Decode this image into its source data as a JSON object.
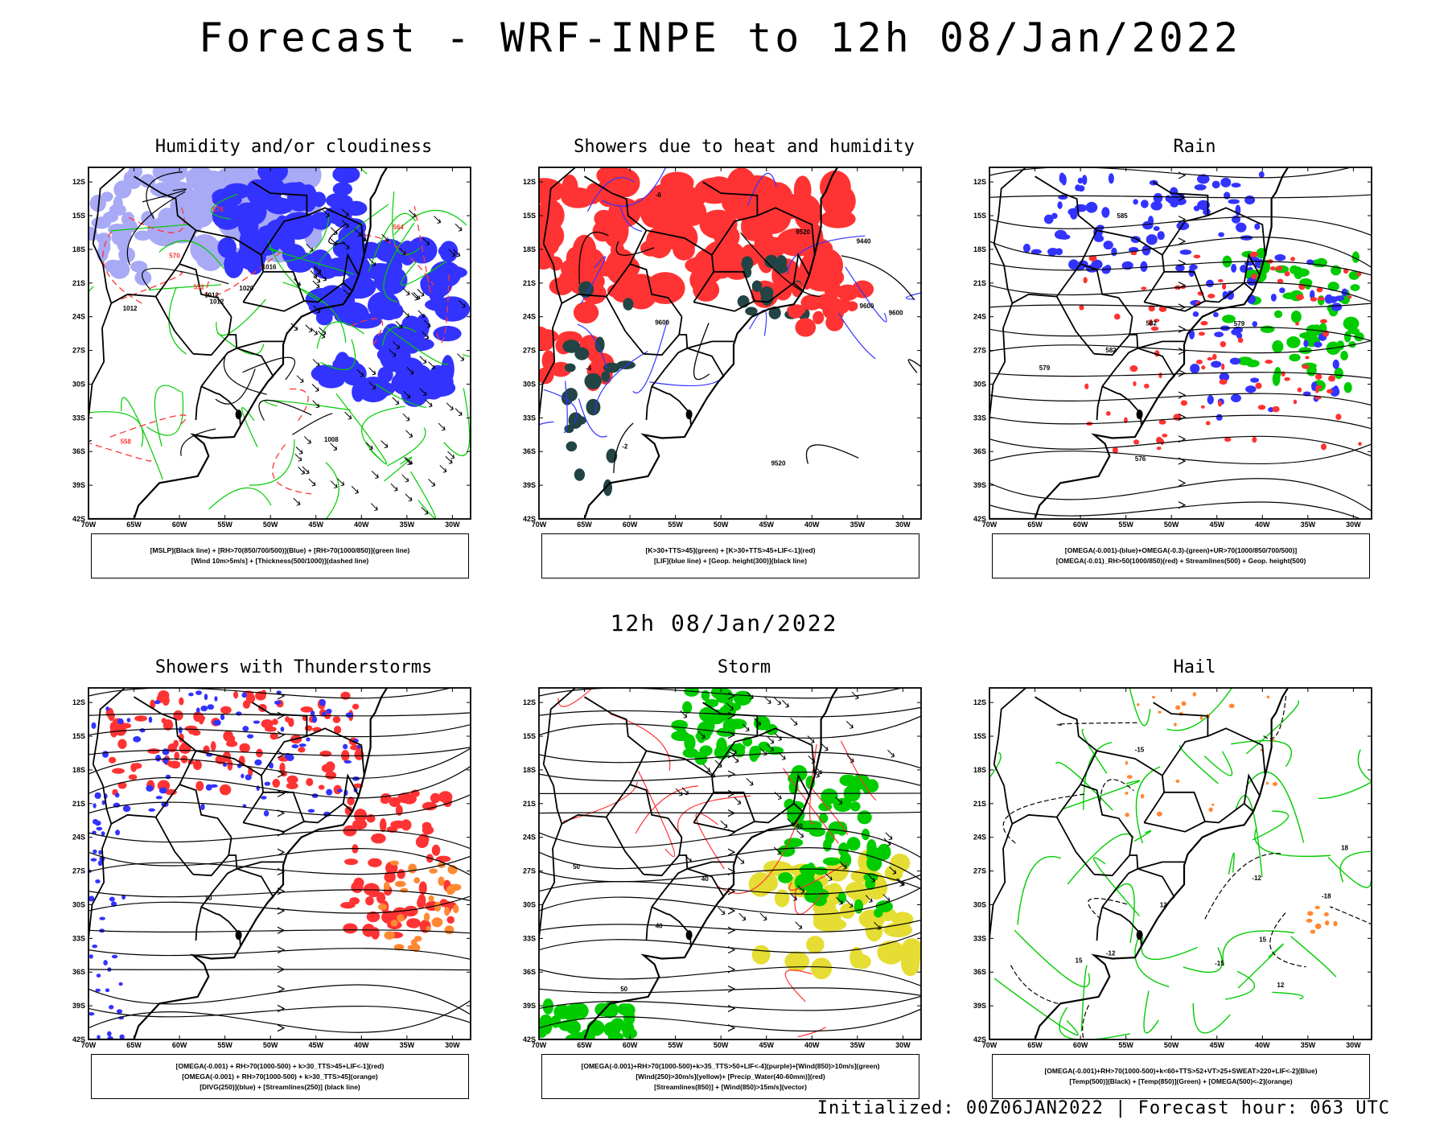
{
  "header": {
    "title": "Forecast - WRF-INPE to 12h 08/Jan/2022",
    "subtitle": "12h 08/Jan/2022",
    "footer": "Initialized: 00Z06JAN2022 | Forecast hour: 063 UTC"
  },
  "axes": {
    "lat_labels": [
      "12S",
      "15S",
      "18S",
      "21S",
      "24S",
      "27S",
      "30S",
      "33S",
      "36S",
      "39S",
      "42S"
    ],
    "lon_labels": [
      "70W",
      "65W",
      "60W",
      "55W",
      "50W",
      "45W",
      "40W",
      "35W",
      "30W"
    ]
  },
  "colors": {
    "blue": "#3333ff",
    "light_blue": "#a9aaf5",
    "green": "#00cc00",
    "red": "#ff3333",
    "orange": "#ff8833",
    "dark_teal": "#224444",
    "yellow": "#e5dd33",
    "purple": "#9933cc"
  },
  "panels": [
    {
      "title": "Humidity and/or cloudiness",
      "caption": [
        "[MSLP](Black line) + [RH>70(850/700/500)](Blue) + [RH>70(1000/850)](green line)",
        "[Wind 10m>5m/s] + [Thickness(500/1000)](dashed line)"
      ],
      "contour_labels": [
        "1012",
        "1012",
        "1012",
        "1016",
        "1020",
        "570",
        "576",
        "564",
        "558",
        "552",
        "1008"
      ]
    },
    {
      "title": "Showers due to heat and humidity",
      "caption": [
        "[K>30+TTS>45](green) + [K>30+TTS>45+LIF<-1](red)",
        "[LIF](blue line) + [Geop. height(300)](black line)"
      ],
      "contour_labels": [
        "9600",
        "9600",
        "9520",
        "9440",
        "9600",
        "9520",
        "-6",
        "-4",
        "-2"
      ]
    },
    {
      "title": "Rain",
      "caption": [
        "[OMEGA(-0.001)-(blue)+OMEGA(-0.3)-(green)+UR>70(1000/850/700/500)]",
        "[OMEGA(-0.01)_RH>50(1000/850)(red) + Streamlines(500) + Geop. height(500)"
      ],
      "contour_labels": [
        "582",
        "579",
        "576",
        "585",
        "582",
        "579"
      ]
    },
    {
      "title": "Showers with Thunderstorms",
      "caption": [
        "[OMEGA(-0.001) + RH>70(1000-500) + k>30_TTS>45+LIF<-1](red)",
        "[OMEGA(-0.001) + RH>70(1000-500) + k>30_TTS>45](orange)",
        "[DIVG(250)](blue) + [Streamlines(250)] (black line)"
      ],
      "contour_labels": [
        "10"
      ]
    },
    {
      "title": "Storm",
      "caption": [
        "[OMEGA(-0.001)+RH>70(1000-500)+k>35_TTS>50+LIF<-4](purple)+[Wind(850)>10m/s](green)",
        "[Wind(250)>30m/s](yellow)+ [Precip_Water(40-60mm)](red)",
        "[Streamlines(850)] + [Wind(850)>15m/s](vector)"
      ],
      "contour_labels": [
        "40",
        "50",
        "40",
        "50",
        "40"
      ]
    },
    {
      "title": "Hail",
      "caption": [
        "[OMEGA(-0.001)+RH>70(1000-500)+k<60+TTS>52+VT>25+SWEAT>220+LIF<-2](Blue)",
        "[Temp(500)](Black) + [Temp(850)](Green) + [OMEGA(500)<-2](orange)"
      ],
      "contour_labels": [
        "-12",
        "-12",
        "-15",
        "-15",
        "-18",
        "12",
        "15",
        "18",
        "12",
        "15"
      ]
    }
  ]
}
